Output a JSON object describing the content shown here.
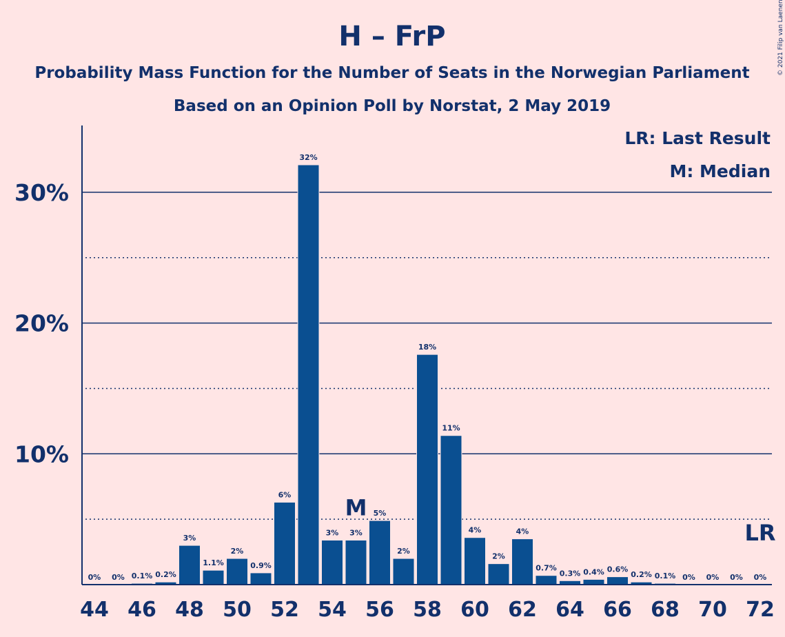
{
  "title": "H – FrP",
  "subtitle1": "Probability Mass Function for the Number of Seats in the Norwegian Parliament",
  "subtitle2": "Based on an Opinion Poll by Norstat, 2 May 2019",
  "copyright": "© 2021 Filip van Laenen",
  "legend": {
    "lr": "LR: Last Result",
    "m": "M: Median"
  },
  "markers": {
    "median_label": "M",
    "median_seat": 55,
    "lr_label": "LR",
    "lr_seat": 72
  },
  "colors": {
    "background": "#FFE5E5",
    "bar": "#0A4F91",
    "text": "#12306B"
  },
  "chart_data": {
    "type": "bar",
    "x": [
      44,
      45,
      46,
      47,
      48,
      49,
      50,
      51,
      52,
      53,
      54,
      55,
      56,
      57,
      58,
      59,
      60,
      61,
      62,
      63,
      64,
      65,
      66,
      67,
      68,
      69,
      70,
      71,
      72
    ],
    "values": [
      0,
      0,
      0.1,
      0.2,
      3,
      1.1,
      2,
      0.9,
      6.3,
      32.1,
      3.4,
      3.4,
      4.9,
      2.0,
      17.6,
      11.4,
      3.6,
      1.6,
      3.5,
      0.7,
      0.3,
      0.4,
      0.6,
      0.2,
      0.1,
      0,
      0,
      0,
      0
    ],
    "labels": [
      "0%",
      "0%",
      "0.1%",
      "0.2%",
      "3%",
      "1.1%",
      "2%",
      "0.9%",
      "6%",
      "32%",
      "3%",
      "3%",
      "5%",
      "2%",
      "18%",
      "11%",
      "4%",
      "2%",
      "4%",
      "0.7%",
      "0.3%",
      "0.4%",
      "0.6%",
      "0.2%",
      "0.1%",
      "0%",
      "0%",
      "0%",
      "0%"
    ],
    "x_tick_labels": [
      "44",
      "46",
      "48",
      "50",
      "52",
      "54",
      "56",
      "58",
      "60",
      "62",
      "64",
      "66",
      "68",
      "70",
      "72"
    ],
    "y_tick_labels": [
      "10%",
      "20%",
      "30%"
    ],
    "ylim": [
      0,
      35
    ],
    "grid": {
      "major": [
        10,
        20,
        30
      ],
      "minor_dotted": [
        5,
        15,
        25
      ]
    }
  }
}
